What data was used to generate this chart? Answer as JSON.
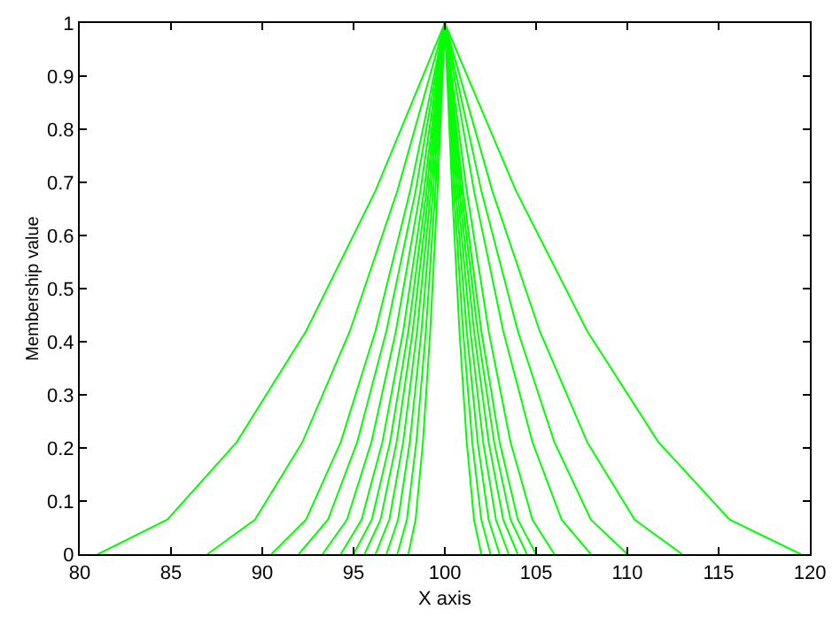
{
  "chart_data": {
    "type": "line",
    "xlabel": "X axis",
    "ylabel": "Membership value",
    "xlim": [
      80,
      120
    ],
    "ylim": [
      0,
      1
    ],
    "xticks": [
      80,
      85,
      90,
      95,
      100,
      105,
      110,
      115,
      120
    ],
    "yticks": [
      0,
      0.1,
      0.2,
      0.3,
      0.4,
      0.5,
      0.6,
      0.7,
      0.8,
      0.9,
      1
    ],
    "marker": "none",
    "line_style": "solid",
    "series": [
      {
        "color": "#00ff00",
        "x": [
          81,
          84.8,
          88.6,
          92.4,
          96.2,
          100,
          103.9,
          107.8,
          111.7,
          115.6,
          119.5
        ],
        "values": [
          0,
          0.065,
          0.211,
          0.42,
          0.684,
          1,
          0.684,
          0.42,
          0.211,
          0.065,
          0
        ]
      },
      {
        "color": "#00ff00",
        "x": [
          87,
          89.6,
          92.2,
          94.8,
          97.4,
          100,
          102.6,
          105.2,
          107.8,
          110.4,
          113
        ],
        "values": [
          0,
          0.065,
          0.211,
          0.42,
          0.684,
          1,
          0.684,
          0.42,
          0.211,
          0.065,
          0
        ]
      },
      {
        "color": "#00ff00",
        "x": [
          90.5,
          92.4,
          94.3,
          96.2,
          98.1,
          100,
          102,
          104,
          106,
          108,
          110
        ],
        "values": [
          0,
          0.065,
          0.211,
          0.42,
          0.684,
          1,
          0.684,
          0.42,
          0.211,
          0.065,
          0
        ]
      },
      {
        "color": "#00ff00",
        "x": [
          92,
          93.6,
          95.2,
          96.8,
          98.4,
          100,
          101.6,
          103.2,
          104.8,
          106.4,
          108
        ],
        "values": [
          0,
          0.065,
          0.211,
          0.42,
          0.684,
          1,
          0.684,
          0.42,
          0.211,
          0.065,
          0
        ]
      },
      {
        "color": "#00ff00",
        "x": [
          93.3,
          94.64,
          95.98,
          97.32,
          98.66,
          100,
          101.2,
          102.4,
          103.6,
          104.8,
          106
        ],
        "values": [
          0,
          0.065,
          0.211,
          0.42,
          0.684,
          1,
          0.684,
          0.42,
          0.211,
          0.065,
          0
        ]
      },
      {
        "color": "#00ff00",
        "x": [
          94.3,
          95.44,
          96.58,
          97.72,
          98.86,
          100,
          101,
          102,
          103,
          104,
          105
        ],
        "values": [
          0,
          0.065,
          0.211,
          0.42,
          0.684,
          1,
          0.684,
          0.42,
          0.211,
          0.065,
          0
        ]
      },
      {
        "color": "#00ff00",
        "x": [
          95,
          96,
          97,
          98,
          99,
          100,
          100.9,
          101.8,
          102.7,
          103.6,
          104.5
        ],
        "values": [
          0,
          0.065,
          0.211,
          0.42,
          0.684,
          1,
          0.684,
          0.42,
          0.211,
          0.065,
          0
        ]
      },
      {
        "color": "#00ff00",
        "x": [
          95.6,
          96.48,
          97.36,
          98.24,
          99.12,
          100,
          100.8,
          101.6,
          102.4,
          103.2,
          104
        ],
        "values": [
          0,
          0.065,
          0.211,
          0.42,
          0.684,
          1,
          0.684,
          0.42,
          0.211,
          0.065,
          0
        ]
      },
      {
        "color": "#00ff00",
        "x": [
          96.2,
          96.96,
          97.72,
          98.48,
          99.24,
          100,
          100.7,
          101.4,
          102.1,
          102.8,
          103.5
        ],
        "values": [
          0,
          0.065,
          0.211,
          0.42,
          0.684,
          1,
          0.684,
          0.42,
          0.211,
          0.065,
          0
        ]
      },
      {
        "color": "#00ff00",
        "x": [
          96.8,
          97.44,
          98.08,
          98.72,
          99.36,
          100,
          100.6,
          101.2,
          101.8,
          102.4,
          103
        ],
        "values": [
          0,
          0.065,
          0.211,
          0.42,
          0.684,
          1,
          0.684,
          0.42,
          0.211,
          0.065,
          0
        ]
      },
      {
        "color": "#00ff00",
        "x": [
          97.4,
          97.92,
          98.44,
          98.96,
          99.48,
          100,
          100.5,
          101,
          101.5,
          102,
          102.5
        ],
        "values": [
          0,
          0.065,
          0.211,
          0.42,
          0.684,
          1,
          0.684,
          0.42,
          0.211,
          0.065,
          0
        ]
      },
      {
        "color": "#00ff00",
        "x": [
          98,
          98.4,
          98.8,
          99.2,
          99.6,
          100,
          100.4,
          100.8,
          101.2,
          101.6,
          102
        ],
        "values": [
          0,
          0.065,
          0.211,
          0.42,
          0.684,
          1,
          0.684,
          0.42,
          0.211,
          0.065,
          0
        ]
      }
    ]
  }
}
